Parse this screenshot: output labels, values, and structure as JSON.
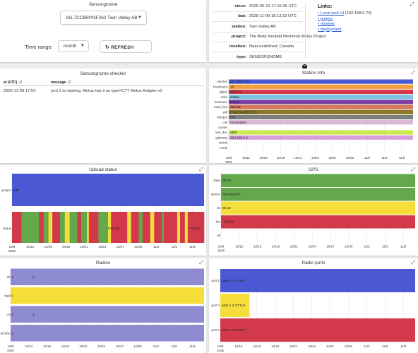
{
  "sensorgnome": {
    "title": "Sensorgnome",
    "station_select": "SG-7CC8RPI3F262 Twin Valley AB",
    "time_range_label": "Time range:",
    "time_range_value": "month",
    "refresh_label": "REFRESH"
  },
  "info": {
    "rows": [
      {
        "key": "since:",
        "value": "2025-06-10 17:16:36 UTC"
      },
      {
        "key": "last:",
        "value": "2025-11-09 18:13:23 UTC"
      },
      {
        "key": "station:",
        "value": "Twin Valley AB"
      },
      {
        "key": "project:",
        "value": "The Betty Neufeld Memorial Motus Project"
      },
      {
        "key": "location:",
        "value": "Near undefined, Canada"
      },
      {
        "key": "type:",
        "value": "SENSORGNOME"
      }
    ],
    "links_title": "Links:",
    "links": [
      {
        "text": "Local web UI",
        "extra": " (192.168.0.70)"
      },
      {
        "text": "project",
        "extra": ""
      },
      {
        "text": "receiver",
        "extra": ""
      },
      {
        "text": "deployment",
        "extra": ""
      }
    ]
  },
  "checker": {
    "title": "Sensorgnome checker",
    "col_at": "at (UTC)",
    "col_message": "message",
    "sort_icon": "↓2",
    "rows": [
      {
        "at": "2025-11-09 17:53",
        "message": "port 2 is missing, Motus has it as type=CTT Motus Adapter v2"
      }
    ]
  },
  "x_axis": {
    "ticks": [
      "10/9",
      "10/12",
      "10/15",
      "10/18",
      "10/21",
      "10/24",
      "10/27",
      "10/30",
      "11/2",
      "11/5",
      "11/8"
    ],
    "year": "2025"
  },
  "radios_axis": {
    "ticks": [
      "10/9",
      "10/12",
      "10/15",
      "10/18",
      "10/21",
      "10/24",
      "10/27",
      "10/30",
      "11/2",
      "11/5",
      "11/8"
    ],
    "year": "2025"
  },
  "colors": {
    "blue": "#4a58d4",
    "red": "#d23a4b",
    "green": "#63a84a",
    "yellow": "#f5de3a",
    "orange": "#f0a03c",
    "purple": "#7a3fa6",
    "olive": "#8a7a2a",
    "gray": "#7e7e7e",
    "pink": "#dbb6d4",
    "lime": "#c7ea4e",
    "lavender": "#8f8bd1",
    "cyan": "#7cc4e0"
  },
  "panels": {
    "station_info": "Station info",
    "upload": "Upload status",
    "gps": "GPS",
    "radios": "Radios",
    "radio_ports": "Radio ports"
  },
  "chart_data": [
    {
      "type": "timeline",
      "title": "Station info",
      "rows": [
        {
          "label": "version",
          "value": "SG 2024-271",
          "color": "#4a58d4"
        },
        {
          "label": "bootcount",
          "value": "18",
          "color": "#f0a03c"
        },
        {
          "label": "sgkey",
          "value": "d5337a",
          "color": "#d23a4b"
        },
        {
          "label": "train",
          "value": "stable",
          "color": "#7cc4e0"
        },
        {
          "label": "timezone",
          "value": "UTC0",
          "color": "#7a3fa6"
        },
        {
          "label": "total_freq",
          "value": "166.38",
          "color": "#d4785a"
        },
        {
          "label": "wifi",
          "value": "DISCONNECTED",
          "color": "#8a7a2a"
        },
        {
          "label": "hotspot",
          "value": "ON",
          "color": "#7e7e7e"
        },
        {
          "label": "cell",
          "value": "no-modem",
          "color": "#dbb6d4"
        },
        {
          "label": "carrier",
          "value": "",
          "color": ""
        },
        {
          "label": "inet_dev",
          "value": "eth0",
          "color": "#c7ea4e"
        },
        {
          "label": "gateway",
          "value": "192.168.0.1",
          "color": "#d9a0e0"
        },
        {
          "label": "tunnel",
          "value": "",
          "color": ""
        },
        {
          "label": "cmds",
          "value": "",
          "color": ""
        }
      ]
    },
    {
      "type": "timeline",
      "title": "Upload status",
      "project_label": "project",
      "project_value": "838",
      "status_label": "status",
      "status_segments": [
        {
          "s": 0.0,
          "e": 0.05,
          "c": "red"
        },
        {
          "s": 0.05,
          "e": 0.14,
          "c": "green"
        },
        {
          "s": 0.14,
          "e": 0.165,
          "c": "red"
        },
        {
          "s": 0.165,
          "e": 0.19,
          "c": "green"
        },
        {
          "s": 0.19,
          "e": 0.21,
          "c": "yellow"
        },
        {
          "s": 0.21,
          "e": 0.25,
          "c": "red"
        },
        {
          "s": 0.25,
          "e": 0.275,
          "c": "green"
        },
        {
          "s": 0.275,
          "e": 0.3,
          "c": "yellow"
        },
        {
          "s": 0.3,
          "e": 0.34,
          "c": "green"
        },
        {
          "s": 0.34,
          "e": 0.36,
          "c": "red"
        },
        {
          "s": 0.36,
          "e": 0.39,
          "c": "green"
        },
        {
          "s": 0.39,
          "e": 0.4,
          "c": "yellow"
        },
        {
          "s": 0.4,
          "e": 0.45,
          "c": "red"
        },
        {
          "s": 0.45,
          "e": 0.5,
          "c": "green"
        },
        {
          "s": 0.5,
          "e": 0.515,
          "c": "yellow"
        },
        {
          "s": 0.515,
          "e": 0.53,
          "c": "red"
        },
        {
          "s": 0.53,
          "e": 0.6,
          "c": "red"
        },
        {
          "s": 0.6,
          "e": 0.62,
          "c": "yellow"
        },
        {
          "s": 0.62,
          "e": 0.66,
          "c": "red"
        },
        {
          "s": 0.66,
          "e": 0.68,
          "c": "green"
        },
        {
          "s": 0.68,
          "e": 0.72,
          "c": "red"
        },
        {
          "s": 0.72,
          "e": 0.74,
          "c": "yellow"
        },
        {
          "s": 0.74,
          "e": 0.78,
          "c": "red"
        },
        {
          "s": 0.78,
          "e": 0.79,
          "c": "green"
        },
        {
          "s": 0.79,
          "e": 0.86,
          "c": "red"
        },
        {
          "s": 0.86,
          "e": 0.875,
          "c": "yellow"
        },
        {
          "s": 0.875,
          "e": 0.9,
          "c": "red"
        },
        {
          "s": 0.9,
          "e": 0.915,
          "c": "yellow"
        },
        {
          "s": 0.915,
          "e": 1.0,
          "c": "red"
        }
      ],
      "labels": [
        {
          "text": "FAILED",
          "pos": 0.53
        },
        {
          "text": "FAILED",
          "pos": 0.95
        }
      ]
    },
    {
      "type": "timeline",
      "title": "GPS",
      "rows": [
        {
          "label": "state",
          "value": "3D-fix",
          "color": "#63a84a"
        },
        {
          "label": "device",
          "value": "/dev/ttyGPS",
          "color": "#63a84a"
        },
        {
          "label": "lat",
          "value": "50.22",
          "color": "#f5de3a"
        },
        {
          "label": "lon",
          "value": "-113.38",
          "color": "#d23a4b"
        },
        {
          "label": "alt",
          "value": "",
          "color": ""
        }
      ]
    },
    {
      "type": "timeline",
      "title": "Radios",
      "rows": [
        {
          "label": "all",
          "value": "3",
          "color": "#8f8bd1",
          "marks": [
            {
              "text": "3",
              "pos": 0.0
            },
            {
              "text": "2",
              "pos": 0.11
            }
          ]
        },
        {
          "label": "bad",
          "value": "0",
          "color": "#f5de3a",
          "marks": [
            {
              "text": "0",
              "pos": 0.0
            }
          ]
        },
        {
          "label": "ctt",
          "value": "2",
          "color": "#8f8bd1",
          "marks": [
            {
              "text": "2",
              "pos": 0.0
            },
            {
              "text": "1",
              "pos": 0.11
            }
          ]
        },
        {
          "label": "funcube",
          "value": "1",
          "color": "#8f8bd1",
          "marks": [
            {
              "text": "1",
              "pos": 0.0
            }
          ]
        }
      ]
    },
    {
      "type": "timeline",
      "title": "Radio ports",
      "rows": [
        {
          "label": "port 1",
          "value": "path 1.1.2 rtlsdr",
          "color": "#4a58d4",
          "end": 1.0
        },
        {
          "label": "port 2",
          "value": "path 1.2 CTTv3",
          "color": "#f5de3a",
          "end": 0.15
        },
        {
          "label": "port 3",
          "value": "path 1.3 CTTv3",
          "color": "#d23a4b",
          "end": 1.0
        }
      ]
    }
  ]
}
